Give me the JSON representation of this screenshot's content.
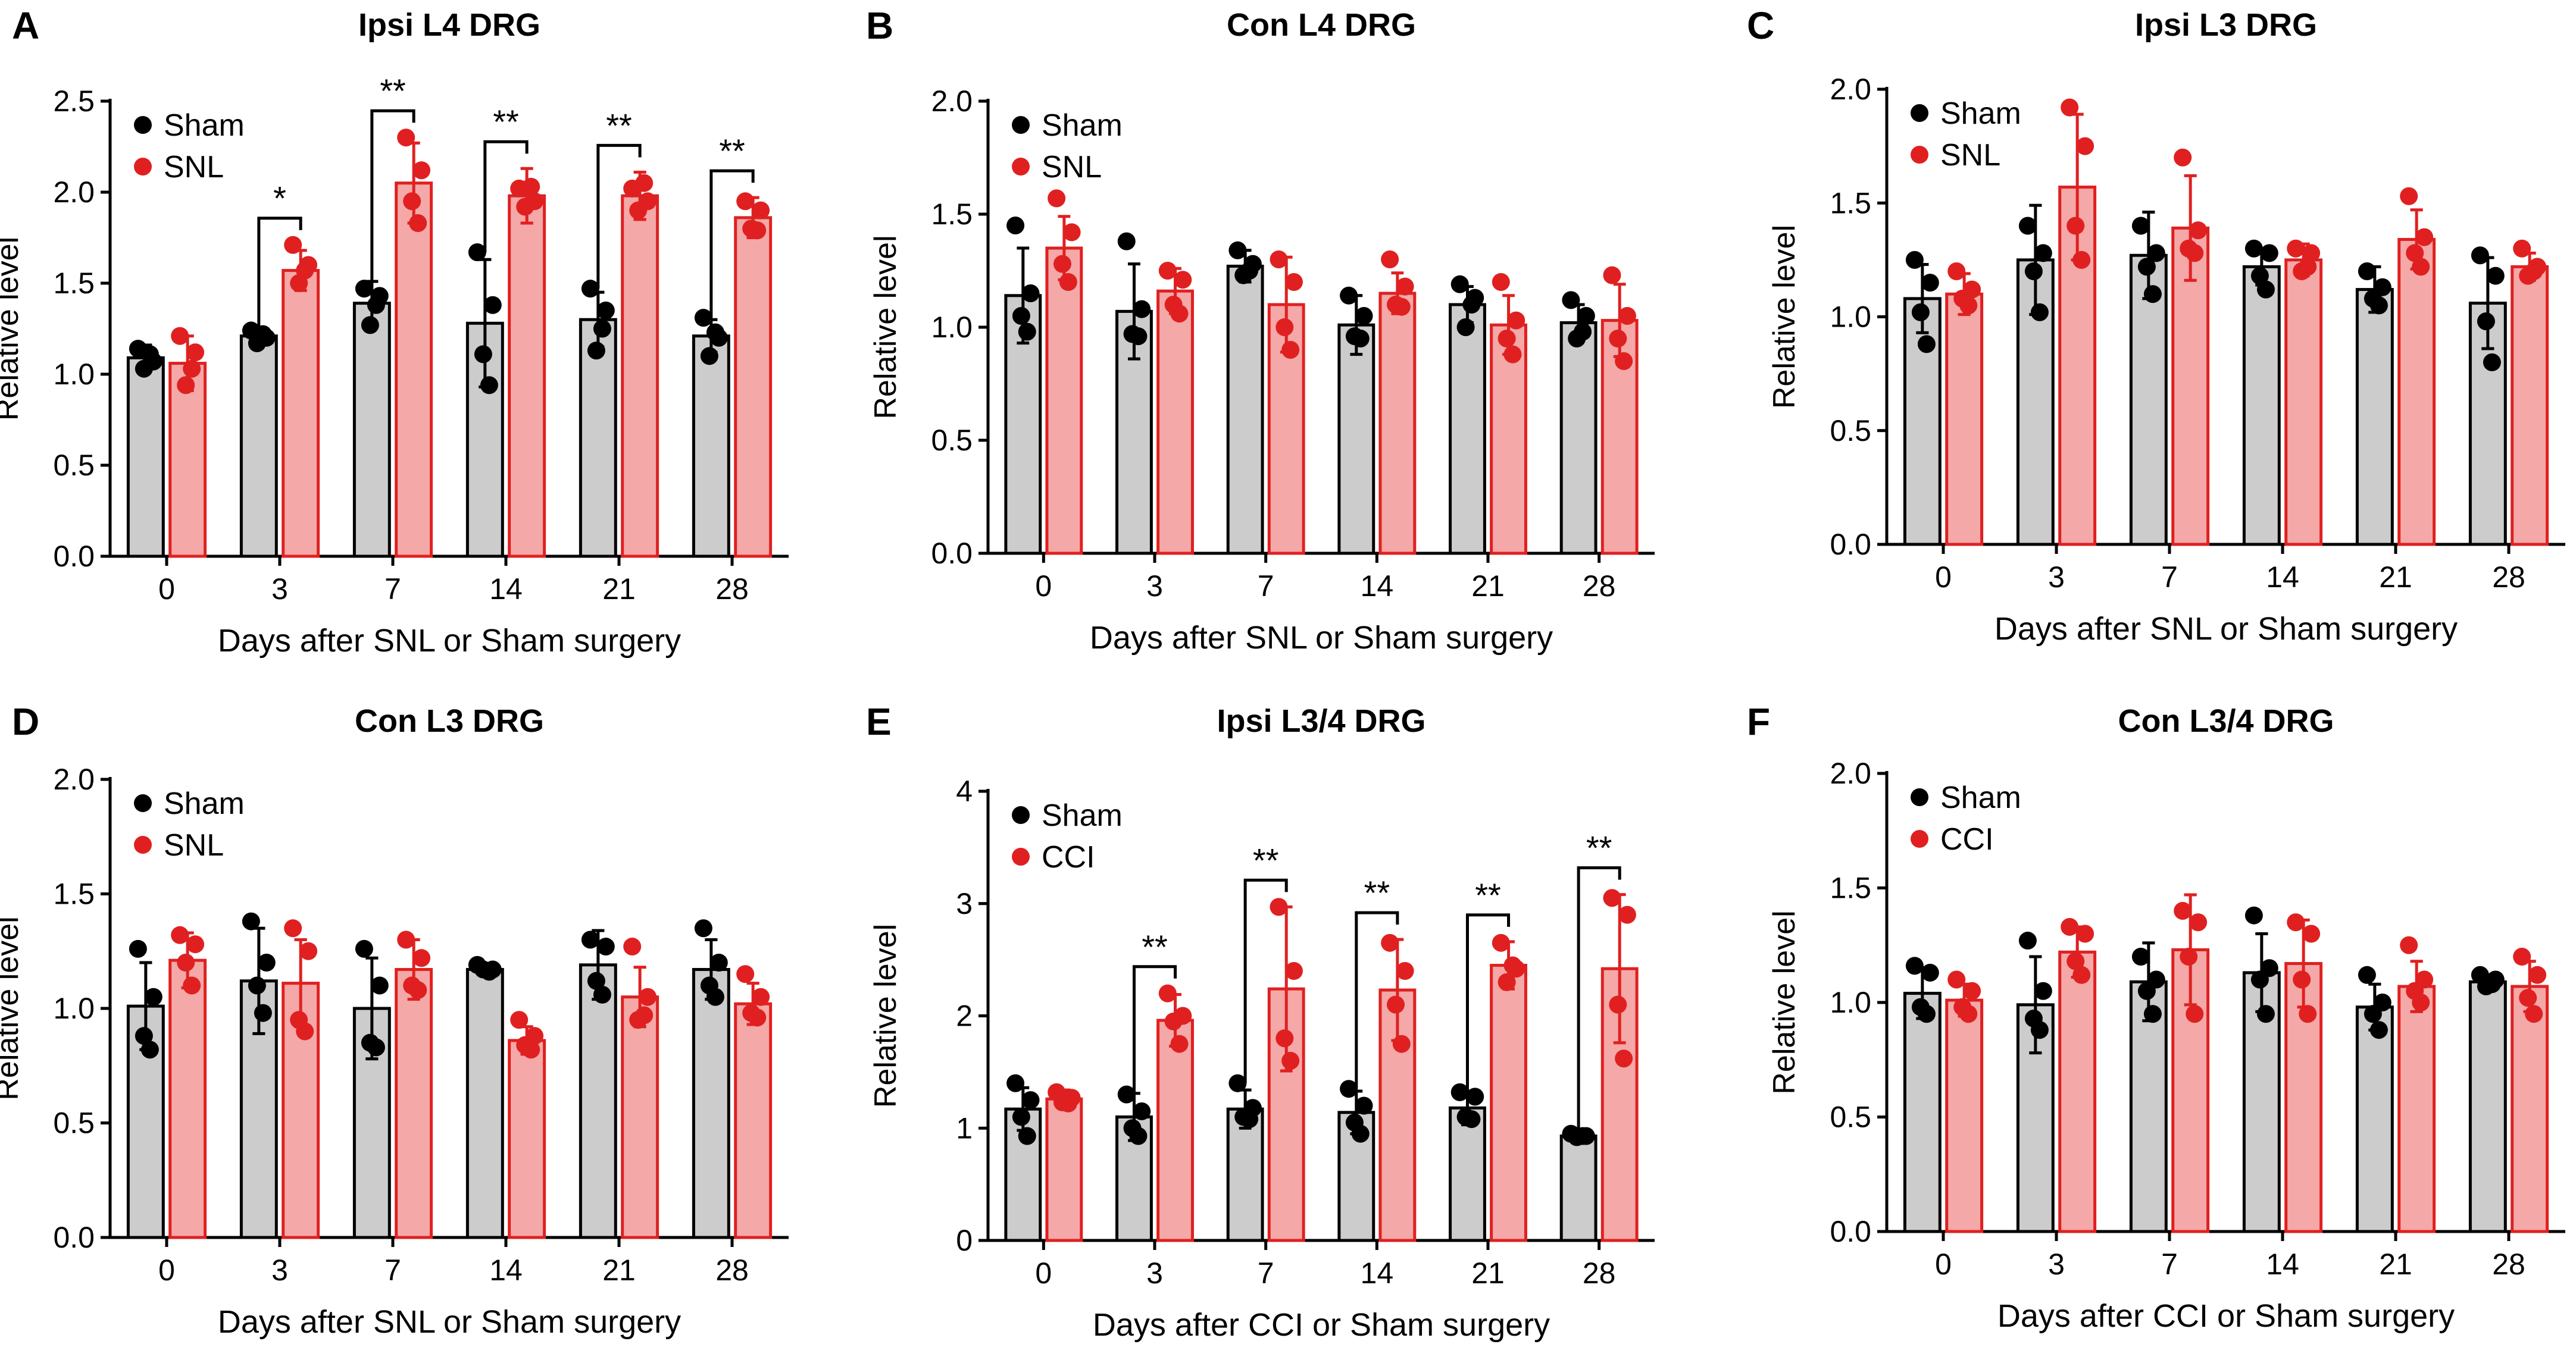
{
  "chart_data": [
    {
      "panel_label": "A",
      "type": "bar",
      "title": "Ipsi L4 DRG",
      "xlabel": "Days after SNL or Sham surgery",
      "ylabel": "Relative level",
      "categories": [
        "0",
        "3",
        "7",
        "14",
        "21",
        "28"
      ],
      "ylim": [
        0,
        2.5
      ],
      "yticks": [
        "0.0",
        "0.5",
        "1.0",
        "1.5",
        "2.0",
        "2.5"
      ],
      "legend_position": "top-left",
      "series": [
        {
          "name": "Sham",
          "color": "#cccccc",
          "dot_color": "#000000",
          "values": [
            1.09,
            1.21,
            1.39,
            1.28,
            1.3,
            1.21
          ],
          "errors": [
            0.07,
            0.03,
            0.12,
            0.35,
            0.15,
            0.09
          ],
          "points": [
            [
              1.14,
              1.07,
              1.03,
              1.11
            ],
            [
              1.24,
              1.2,
              1.17,
              1.22
            ],
            [
              1.47,
              1.43,
              1.27,
              1.38
            ],
            [
              1.67,
              1.38,
              1.11,
              0.94
            ],
            [
              1.47,
              1.35,
              1.13,
              1.25
            ],
            [
              1.31,
              1.2,
              1.1,
              1.23
            ]
          ]
        },
        {
          "name": "SNL",
          "color": "#f4a8a8",
          "dot_color": "#e02020",
          "values": [
            1.06,
            1.57,
            2.05,
            1.98,
            1.98,
            1.86
          ],
          "errors": [
            0.15,
            0.11,
            0.22,
            0.15,
            0.13,
            0.11
          ],
          "points": [
            [
              1.21,
              1.12,
              0.94,
              1.03
            ],
            [
              1.71,
              1.6,
              1.5,
              1.57
            ],
            [
              2.3,
              2.12,
              1.95,
              1.83
            ],
            [
              2.02,
              1.95,
              1.92,
              2.03
            ],
            [
              2.02,
              1.95,
              1.9,
              2.05
            ],
            [
              1.95,
              1.9,
              1.8,
              1.79
            ]
          ]
        }
      ],
      "significance": [
        null,
        "*",
        "**",
        "**",
        "**",
        "**"
      ]
    },
    {
      "panel_label": "B",
      "type": "bar",
      "title": "Con L4 DRG",
      "xlabel": "Days after SNL or Sham surgery",
      "ylabel": "Relative level",
      "categories": [
        "0",
        "3",
        "7",
        "14",
        "21",
        "28"
      ],
      "ylim": [
        0,
        2.0
      ],
      "yticks": [
        "0.0",
        "0.5",
        "1.0",
        "1.5",
        "2.0"
      ],
      "legend_position": "top-left",
      "series": [
        {
          "name": "Sham",
          "color": "#cccccc",
          "dot_color": "#000000",
          "values": [
            1.14,
            1.07,
            1.27,
            1.01,
            1.1,
            1.02
          ],
          "errors": [
            0.21,
            0.21,
            0.07,
            0.13,
            0.08,
            0.08
          ],
          "points": [
            [
              1.45,
              1.15,
              1.05,
              0.98
            ],
            [
              1.38,
              1.08,
              0.97,
              0.96
            ],
            [
              1.34,
              1.28,
              1.23,
              1.25
            ],
            [
              1.14,
              1.05,
              0.96,
              0.95
            ],
            [
              1.19,
              1.13,
              1.0,
              1.1
            ],
            [
              1.12,
              1.05,
              0.95,
              0.98
            ]
          ]
        },
        {
          "name": "SNL",
          "color": "#f4a8a8",
          "dot_color": "#e02020",
          "values": [
            1.35,
            1.16,
            1.1,
            1.15,
            1.01,
            1.03
          ],
          "errors": [
            0.14,
            0.1,
            0.21,
            0.09,
            0.13,
            0.16
          ],
          "points": [
            [
              1.57,
              1.42,
              1.28,
              1.2
            ],
            [
              1.25,
              1.21,
              1.1,
              1.06
            ],
            [
              1.3,
              1.2,
              1.0,
              0.9
            ],
            [
              1.3,
              1.18,
              1.1,
              1.09
            ],
            [
              1.2,
              1.03,
              0.95,
              0.88
            ],
            [
              1.23,
              1.05,
              0.95,
              0.85
            ]
          ]
        }
      ],
      "significance": [
        null,
        null,
        null,
        null,
        null,
        null
      ]
    },
    {
      "panel_label": "C",
      "type": "bar",
      "title": "Ipsi L3 DRG",
      "xlabel": "Days after SNL or Sham surgery",
      "ylabel": "Relative level",
      "categories": [
        "0",
        "3",
        "7",
        "14",
        "21",
        "28"
      ],
      "ylim": [
        0,
        2.0
      ],
      "yticks": [
        "0.0",
        "0.5",
        "1.0",
        "1.5",
        "2.0"
      ],
      "legend_position": "top-left",
      "series": [
        {
          "name": "Sham",
          "color": "#cccccc",
          "dot_color": "#000000",
          "values": [
            1.08,
            1.25,
            1.27,
            1.22,
            1.12,
            1.06
          ],
          "errors": [
            0.15,
            0.24,
            0.19,
            0.08,
            0.1,
            0.2
          ],
          "points": [
            [
              1.25,
              1.15,
              1.02,
              0.88
            ],
            [
              1.4,
              1.28,
              1.2,
              1.02
            ],
            [
              1.4,
              1.28,
              1.22,
              1.1
            ],
            [
              1.3,
              1.28,
              1.18,
              1.12
            ],
            [
              1.2,
              1.13,
              1.08,
              1.05
            ],
            [
              1.27,
              1.18,
              0.98,
              0.8
            ]
          ]
        },
        {
          "name": "SNL",
          "color": "#f4a8a8",
          "dot_color": "#e02020",
          "values": [
            1.1,
            1.57,
            1.39,
            1.25,
            1.34,
            1.22
          ],
          "errors": [
            0.09,
            0.32,
            0.23,
            0.07,
            0.13,
            0.06
          ],
          "points": [
            [
              1.2,
              1.12,
              1.08,
              1.05
            ],
            [
              1.92,
              1.75,
              1.4,
              1.25
            ],
            [
              1.7,
              1.38,
              1.3,
              1.28
            ],
            [
              1.3,
              1.28,
              1.2,
              1.22
            ],
            [
              1.53,
              1.35,
              1.28,
              1.22
            ],
            [
              1.3,
              1.22,
              1.18,
              1.2
            ]
          ]
        }
      ],
      "significance": [
        null,
        null,
        null,
        null,
        null,
        null
      ]
    },
    {
      "panel_label": "D",
      "type": "bar",
      "title": "Con L3 DRG",
      "xlabel": "Days after SNL or Sham surgery",
      "ylabel": "Relative level",
      "categories": [
        "0",
        "3",
        "7",
        "14",
        "21",
        "28"
      ],
      "ylim": [
        0,
        2.0
      ],
      "yticks": [
        "0.0",
        "0.5",
        "1.0",
        "1.5",
        "2.0"
      ],
      "legend_position": "top-left",
      "series": [
        {
          "name": "Sham",
          "color": "#cccccc",
          "dot_color": "#000000",
          "values": [
            1.01,
            1.12,
            1.0,
            1.17,
            1.19,
            1.17
          ],
          "errors": [
            0.19,
            0.23,
            0.22,
            0.02,
            0.15,
            0.13
          ],
          "points": [
            [
              1.26,
              1.05,
              0.88,
              0.82
            ],
            [
              1.38,
              1.2,
              1.1,
              0.98
            ],
            [
              1.26,
              1.1,
              0.85,
              0.83
            ],
            [
              1.19,
              1.17,
              1.17,
              1.16
            ],
            [
              1.3,
              1.27,
              1.12,
              1.06
            ],
            [
              1.35,
              1.2,
              1.1,
              1.05
            ]
          ]
        },
        {
          "name": "SNL",
          "color": "#f4a8a8",
          "dot_color": "#e02020",
          "values": [
            1.21,
            1.11,
            1.17,
            0.86,
            1.05,
            1.02
          ],
          "errors": [
            0.12,
            0.19,
            0.13,
            0.06,
            0.13,
            0.09
          ],
          "points": [
            [
              1.32,
              1.28,
              1.2,
              1.1
            ],
            [
              1.35,
              1.25,
              0.95,
              0.9
            ],
            [
              1.3,
              1.22,
              1.1,
              1.08
            ],
            [
              0.95,
              0.88,
              0.84,
              0.82
            ],
            [
              1.27,
              1.05,
              0.95,
              0.97
            ],
            [
              1.15,
              1.05,
              0.98,
              0.96
            ]
          ]
        }
      ],
      "significance": [
        null,
        null,
        null,
        null,
        null,
        null
      ]
    },
    {
      "panel_label": "E",
      "type": "bar",
      "title": "Ipsi L3/4 DRG",
      "xlabel": "Days after CCI or Sham surgery",
      "ylabel": "Relative level",
      "categories": [
        "0",
        "3",
        "7",
        "14",
        "21",
        "28"
      ],
      "ylim": [
        0,
        4
      ],
      "yticks": [
        "0",
        "1",
        "2",
        "3",
        "4"
      ],
      "legend_position": "top-left",
      "series": [
        {
          "name": "Sham",
          "color": "#cccccc",
          "dot_color": "#000000",
          "values": [
            1.17,
            1.1,
            1.17,
            1.14,
            1.18,
            0.93
          ],
          "errors": [
            0.19,
            0.21,
            0.17,
            0.19,
            0.15,
            0.03
          ],
          "points": [
            [
              1.4,
              1.25,
              1.1,
              0.93
            ],
            [
              1.3,
              1.15,
              1.0,
              0.93
            ],
            [
              1.4,
              1.18,
              1.1,
              1.08
            ],
            [
              1.35,
              1.2,
              1.05,
              0.95
            ],
            [
              1.32,
              1.28,
              1.1,
              1.08
            ],
            [
              0.95,
              0.93,
              0.92,
              0.93
            ]
          ]
        },
        {
          "name": "CCI",
          "color": "#f4a8a8",
          "dot_color": "#e02020",
          "values": [
            1.26,
            1.96,
            2.24,
            2.23,
            2.45,
            2.42
          ],
          "errors": [
            0.08,
            0.23,
            0.73,
            0.45,
            0.21,
            0.66
          ],
          "points": [
            [
              1.32,
              1.27,
              1.23,
              1.22
            ],
            [
              2.2,
              2.0,
              1.95,
              1.75
            ],
            [
              2.97,
              2.4,
              1.8,
              1.6
            ],
            [
              2.65,
              2.4,
              2.1,
              1.75
            ],
            [
              2.65,
              2.42,
              2.3,
              2.45
            ],
            [
              3.05,
              2.9,
              2.1,
              1.62
            ]
          ]
        }
      ],
      "significance": [
        null,
        "**",
        "**",
        "**",
        "**",
        "**"
      ]
    },
    {
      "panel_label": "F",
      "type": "bar",
      "title": "Con L3/4 DRG",
      "xlabel": "Days after CCI or Sham surgery",
      "ylabel": "Relative level",
      "categories": [
        "0",
        "3",
        "7",
        "14",
        "21",
        "28"
      ],
      "ylim": [
        0,
        2.0
      ],
      "yticks": [
        "0.0",
        "0.5",
        "1.0",
        "1.5",
        "2.0"
      ],
      "legend_position": "top-left",
      "series": [
        {
          "name": "Sham",
          "color": "#cccccc",
          "dot_color": "#000000",
          "values": [
            1.04,
            0.99,
            1.09,
            1.13,
            0.98,
            1.09
          ],
          "errors": [
            0.11,
            0.21,
            0.17,
            0.17,
            0.1,
            0.03
          ],
          "points": [
            [
              1.16,
              1.13,
              0.98,
              0.95
            ],
            [
              1.27,
              1.05,
              0.93,
              0.88
            ],
            [
              1.2,
              1.1,
              1.05,
              0.95
            ],
            [
              1.38,
              1.15,
              1.1,
              0.95
            ],
            [
              1.12,
              1.0,
              0.95,
              0.88
            ],
            [
              1.12,
              1.1,
              1.07,
              1.08
            ]
          ]
        },
        {
          "name": "CCI",
          "color": "#f4a8a8",
          "dot_color": "#e02020",
          "values": [
            1.01,
            1.22,
            1.23,
            1.17,
            1.07,
            1.07
          ],
          "errors": [
            0.07,
            0.11,
            0.24,
            0.19,
            0.11,
            0.11
          ],
          "points": [
            [
              1.1,
              1.05,
              0.98,
              0.95
            ],
            [
              1.33,
              1.3,
              1.18,
              1.12
            ],
            [
              1.4,
              1.35,
              1.2,
              0.95
            ],
            [
              1.35,
              1.3,
              1.1,
              0.95
            ],
            [
              1.25,
              1.1,
              1.05,
              1.0
            ],
            [
              1.2,
              1.12,
              1.02,
              0.95
            ]
          ]
        }
      ],
      "significance": [
        null,
        null,
        null,
        null,
        null,
        null
      ]
    }
  ]
}
